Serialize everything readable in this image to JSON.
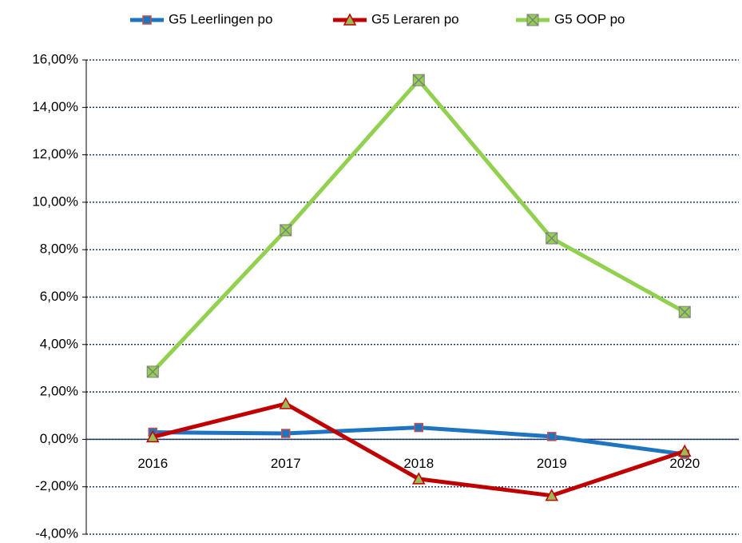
{
  "chart_data": {
    "type": "line",
    "categories": [
      "2016",
      "2017",
      "2018",
      "2019",
      "2020"
    ],
    "series": [
      {
        "name": "G5 Leerlingen po",
        "color": "#1f74c2",
        "marker": "square",
        "values": [
          0.3,
          0.25,
          0.5,
          0.12,
          -0.63
        ]
      },
      {
        "name": "G5 Leraren po",
        "color": "#c00000",
        "marker": "triangle",
        "values": [
          0.1,
          1.5,
          -1.67,
          -2.37,
          -0.5
        ]
      },
      {
        "name": "G5 OOP po",
        "color": "#92d050",
        "marker": "x-square",
        "values": [
          2.85,
          8.82,
          15.15,
          8.48,
          5.37
        ]
      }
    ],
    "ylim": [
      -4,
      16
    ],
    "yticks": [
      {
        "value": -4,
        "label": "-4,00%"
      },
      {
        "value": -2,
        "label": "-2,00%"
      },
      {
        "value": 0,
        "label": "0,00%"
      },
      {
        "value": 2,
        "label": "2,00%"
      },
      {
        "value": 4,
        "label": "4,00%"
      },
      {
        "value": 6,
        "label": "6,00%"
      },
      {
        "value": 8,
        "label": "8,00%"
      },
      {
        "value": 10,
        "label": "10,00%"
      },
      {
        "value": 12,
        "label": "12,00%"
      },
      {
        "value": 14,
        "label": "14,00%"
      },
      {
        "value": 16,
        "label": "16,00%"
      }
    ],
    "grid": true,
    "legend": "top"
  }
}
